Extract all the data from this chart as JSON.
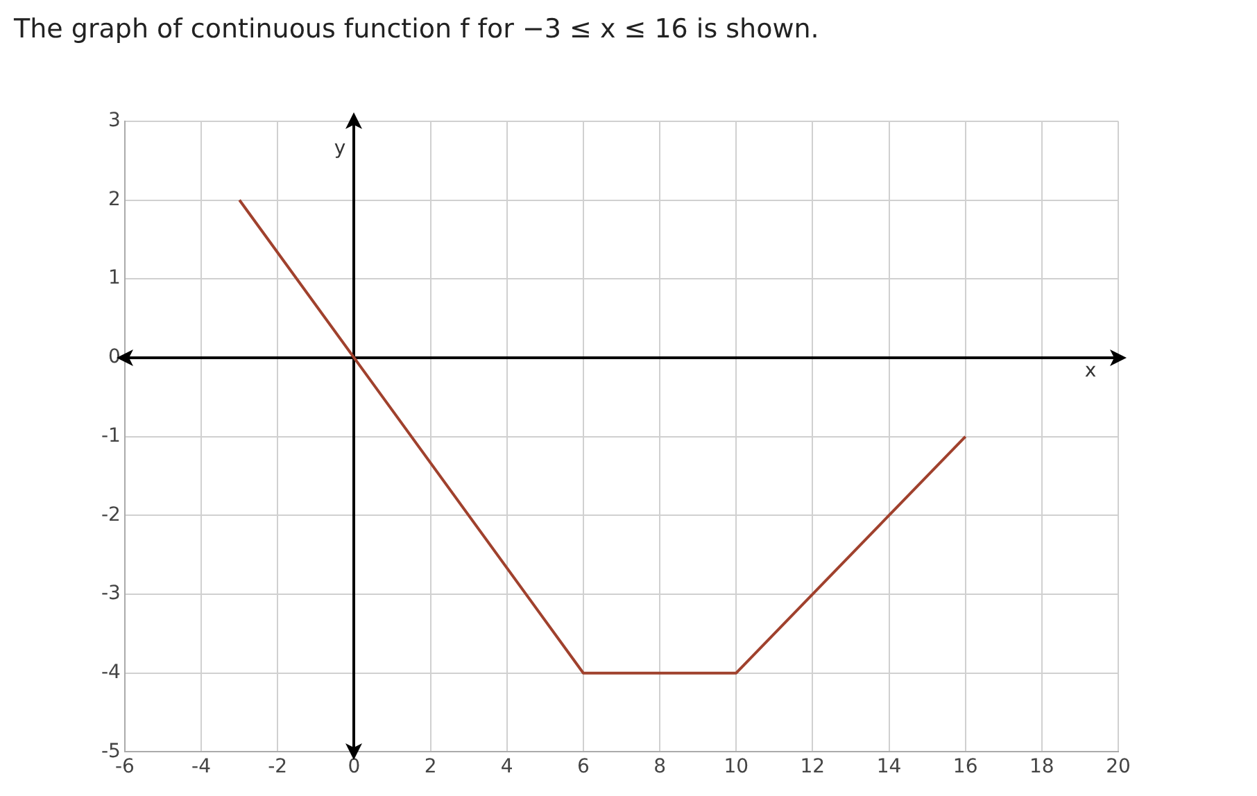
{
  "chart_data": {
    "type": "line",
    "title": "The graph of continuous function f for −3 ≤ x ≤ 16 is shown.",
    "xlabel": "x",
    "ylabel": "y",
    "x": [
      -3,
      0,
      6,
      10,
      16
    ],
    "values": [
      2,
      0,
      -4,
      -4,
      -1
    ],
    "color": "#a0412d",
    "xlim": [
      -6,
      20
    ],
    "xticks": [
      -6,
      -4,
      -2,
      0,
      2,
      4,
      6,
      8,
      10,
      12,
      14,
      16,
      18,
      20
    ],
    "ylim": [
      -5,
      3
    ],
    "yticks": [
      -5,
      -4,
      -3,
      -2,
      -1,
      0,
      1,
      2,
      3
    ],
    "grid": true,
    "marker": "none",
    "line_style": "solid",
    "legend": false
  }
}
